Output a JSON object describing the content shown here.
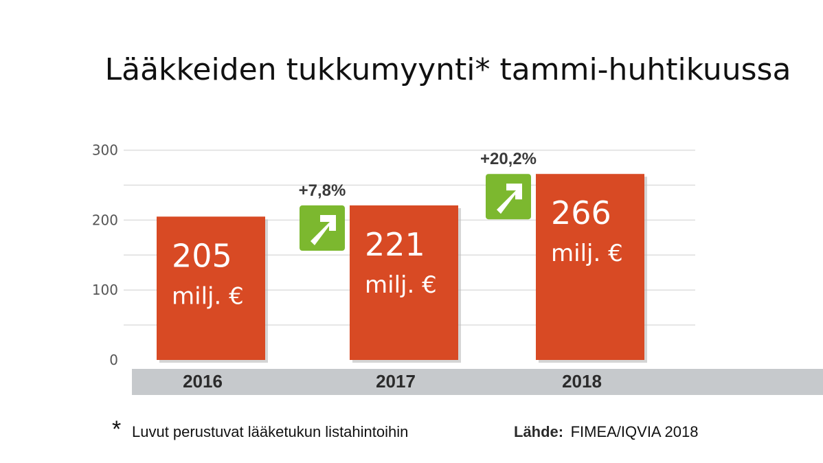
{
  "chart_data": {
    "type": "bar",
    "title": "Lääkkeiden tukkumyynti* tammi-huhtikuussa",
    "categories": [
      "2016",
      "2017",
      "2018"
    ],
    "values": [
      205,
      221,
      266
    ],
    "value_labels": [
      "205",
      "221",
      "266"
    ],
    "unit_label": "milj. €",
    "changes": [
      null,
      "+7,8%",
      "+20,2%"
    ],
    "yticks": [
      0,
      100,
      200,
      300
    ],
    "ylim": [
      0,
      330
    ],
    "xlabel": "",
    "ylabel": "",
    "grid": true
  },
  "footnote": {
    "star": "*",
    "text": "Luvut perustuvat lääketukun listahintoihin"
  },
  "source": {
    "label": "Lähde:",
    "text": "FIMEA/IQVIA 2018"
  },
  "colors": {
    "bar": "#d84a24",
    "arrow_box": "#7cb82f",
    "axis_band": "#c6c9cc",
    "grid": "#dedede",
    "shadow": "#b9b9b9"
  }
}
